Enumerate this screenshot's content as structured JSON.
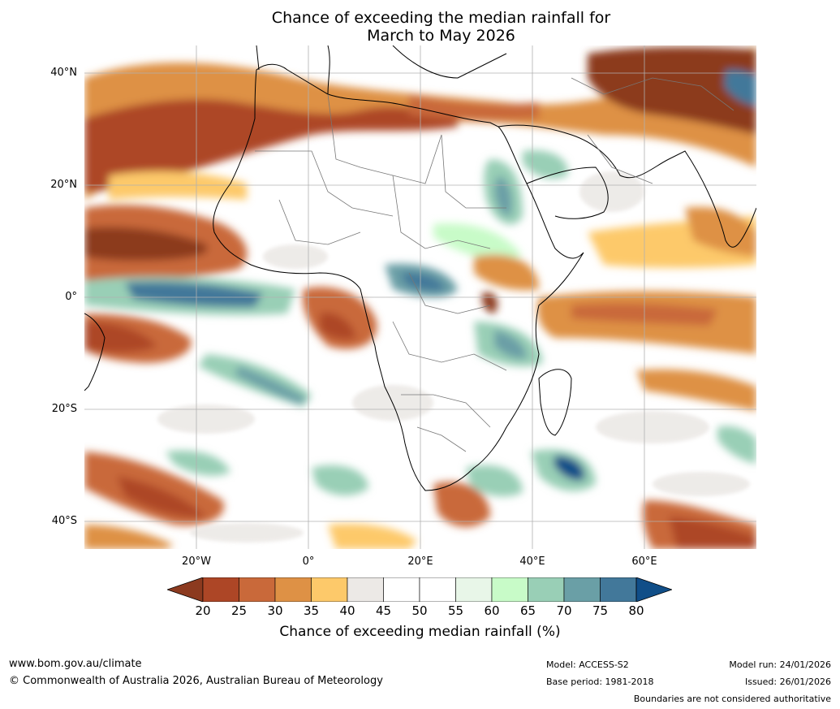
{
  "title_line1": "Chance of exceeding the median rainfall for",
  "title_line2": "March to May 2026",
  "map": {
    "lat_labels": [
      "40°N",
      "20°N",
      "0°",
      "20°S",
      "40°S"
    ],
    "lon_labels": [
      "20°W",
      "0°",
      "20°E",
      "40°E",
      "60°E"
    ]
  },
  "colorbar": {
    "ticks": [
      "20",
      "25",
      "30",
      "35",
      "40",
      "45",
      "50",
      "55",
      "60",
      "65",
      "70",
      "75",
      "80"
    ],
    "colors": [
      "#8c3a1f",
      "#ad4626",
      "#c9693a",
      "#de9145",
      "#fdc96a",
      "#ece9e6",
      "#ffffff",
      "#ffffff",
      "#e8f6e8",
      "#c8fbc8",
      "#99cfb6",
      "#6a9fa6",
      "#42789a",
      "#104e88"
    ],
    "label": "Chance of exceeding median rainfall (%)"
  },
  "footer": {
    "website": "www.bom.gov.au/climate",
    "copyright": "© Commonwealth of Australia 2026, Australian Bureau of Meteorology",
    "model": "Model: ACCESS-S2",
    "base_period": "Base period: 1981-2018",
    "model_run": "Model run: 24/01/2026",
    "issued": "Issued: 26/01/2026",
    "disclaimer": "Boundaries are not considered authoritative"
  }
}
